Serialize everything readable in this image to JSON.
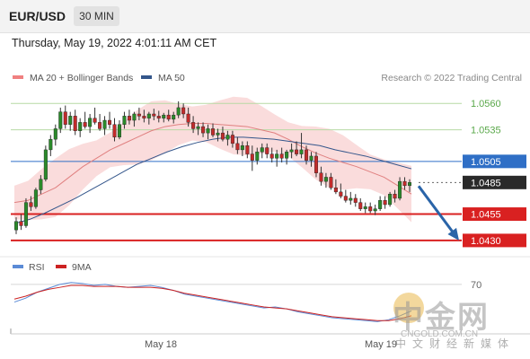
{
  "header": {
    "pair": "EUR/USD",
    "timeframe": "30 MIN"
  },
  "datetime": "Thursday, May 19, 2022 4:01:11 AM CET",
  "legend": {
    "bollinger_label": "MA 20 + Bollinger Bands",
    "ma50_label": "MA 50",
    "credit": "Research © 2022 Trading Central",
    "bollinger_color": "#f08080",
    "ma50_color": "#34568b"
  },
  "price_levels": [
    {
      "label": "1.0560",
      "value": 1.056,
      "style": "text-green",
      "line_color": "#b7d9a4"
    },
    {
      "label": "1.0535",
      "value": 1.0535,
      "style": "text-green",
      "line_color": "#b7d9a4"
    },
    {
      "label": "1.0505",
      "value": 1.0505,
      "style": "box-blue",
      "line_color": "#2f6fc6"
    },
    {
      "label": "1.0485",
      "value": 1.0485,
      "style": "box-dark",
      "line_color": "#666666"
    },
    {
      "label": "1.0455",
      "value": 1.0455,
      "style": "box-red",
      "line_color": "#d92121"
    },
    {
      "label": "1.0430",
      "value": 1.043,
      "style": "box-red",
      "line_color": "#d92121"
    }
  ],
  "rsi_legend": {
    "rsi_label": "RSI",
    "ma_label": "9MA",
    "rsi_color": "#5b8bd6",
    "ma_color": "#cc2222"
  },
  "rsi_level_label": "70",
  "x_labels": [
    "May 18",
    "May 19"
  ],
  "watermark": {
    "cn_text": "中金网",
    "url": "CNGOLD.COM.CN",
    "sub": "中文财经新媒体"
  },
  "chart_data": {
    "type": "candlestick",
    "title": "EUR/USD 30 MIN",
    "ylim": [
      1.0418,
      1.059
    ],
    "up_color": "#2a8a2a",
    "down_color": "#c22b2b",
    "candles": [
      [
        1.044,
        1.0452,
        1.0436,
        1.0448
      ],
      [
        1.0448,
        1.0455,
        1.044,
        1.0444
      ],
      [
        1.0444,
        1.047,
        1.0442,
        1.0466
      ],
      [
        1.0466,
        1.0472,
        1.0458,
        1.0462
      ],
      [
        1.0462,
        1.048,
        1.046,
        1.0478
      ],
      [
        1.0478,
        1.0492,
        1.0474,
        1.0488
      ],
      [
        1.0488,
        1.052,
        1.0486,
        1.0516
      ],
      [
        1.0516,
        1.053,
        1.051,
        1.0526
      ],
      [
        1.0526,
        1.054,
        1.052,
        1.0536
      ],
      [
        1.0536,
        1.0556,
        1.0532,
        1.0552
      ],
      [
        1.0552,
        1.0558,
        1.0536,
        1.054
      ],
      [
        1.054,
        1.0552,
        1.0534,
        1.0548
      ],
      [
        1.0548,
        1.0554,
        1.053,
        1.0534
      ],
      [
        1.0534,
        1.0546,
        1.0528,
        1.0542
      ],
      [
        1.0542,
        1.0552,
        1.0536,
        1.0538
      ],
      [
        1.0538,
        1.055,
        1.0532,
        1.0546
      ],
      [
        1.0546,
        1.0556,
        1.054,
        1.0542
      ],
      [
        1.0542,
        1.055,
        1.0534,
        1.0536
      ],
      [
        1.0536,
        1.0548,
        1.053,
        1.0544
      ],
      [
        1.0544,
        1.0552,
        1.0536,
        1.054
      ],
      [
        1.054,
        1.0546,
        1.0524,
        1.0528
      ],
      [
        1.0528,
        1.0544,
        1.0526,
        1.054
      ],
      [
        1.054,
        1.0552,
        1.0536,
        1.0548
      ],
      [
        1.0548,
        1.0554,
        1.054,
        1.0544
      ],
      [
        1.0544,
        1.0552,
        1.0538,
        1.055
      ],
      [
        1.055,
        1.0556,
        1.0544,
        1.0548
      ],
      [
        1.0548,
        1.0554,
        1.0542,
        1.0546
      ],
      [
        1.0546,
        1.0552,
        1.054,
        1.055
      ],
      [
        1.055,
        1.0555,
        1.0544,
        1.0548
      ],
      [
        1.0548,
        1.0553,
        1.0542,
        1.0546
      ],
      [
        1.0546,
        1.0551,
        1.0542,
        1.0549
      ],
      [
        1.0549,
        1.0554,
        1.0543,
        1.0545
      ],
      [
        1.0545,
        1.0552,
        1.0541,
        1.0549
      ],
      [
        1.0549,
        1.0562,
        1.0546,
        1.0556
      ],
      [
        1.0556,
        1.056,
        1.0546,
        1.055
      ],
      [
        1.055,
        1.0556,
        1.0538,
        1.0542
      ],
      [
        1.0542,
        1.0548,
        1.0532,
        1.0536
      ],
      [
        1.0536,
        1.0542,
        1.053,
        1.0538
      ],
      [
        1.0538,
        1.0542,
        1.0528,
        1.0532
      ],
      [
        1.0532,
        1.054,
        1.0526,
        1.0536
      ],
      [
        1.0536,
        1.0541,
        1.0528,
        1.053
      ],
      [
        1.053,
        1.0536,
        1.0524,
        1.0532
      ],
      [
        1.0532,
        1.0538,
        1.0524,
        1.0526
      ],
      [
        1.0526,
        1.0534,
        1.052,
        1.053
      ],
      [
        1.053,
        1.0534,
        1.0518,
        1.0522
      ],
      [
        1.0522,
        1.0528,
        1.0512,
        1.0516
      ],
      [
        1.0516,
        1.0524,
        1.051,
        1.052
      ],
      [
        1.052,
        1.0524,
        1.0508,
        1.0512
      ],
      [
        1.0512,
        1.052,
        1.0496,
        1.0506
      ],
      [
        1.0506,
        1.0518,
        1.0502,
        1.0514
      ],
      [
        1.0514,
        1.0522,
        1.0508,
        1.0518
      ],
      [
        1.0518,
        1.0522,
        1.0508,
        1.0512
      ],
      [
        1.0512,
        1.0518,
        1.0504,
        1.0508
      ],
      [
        1.0508,
        1.0516,
        1.05,
        1.0512
      ],
      [
        1.0512,
        1.0518,
        1.0504,
        1.0508
      ],
      [
        1.0508,
        1.0516,
        1.0502,
        1.0514
      ],
      [
        1.0514,
        1.0522,
        1.0508,
        1.0516
      ],
      [
        1.0516,
        1.0524,
        1.051,
        1.0512
      ],
      [
        1.0512,
        1.0532,
        1.0508,
        1.0516
      ],
      [
        1.0516,
        1.052,
        1.0502,
        1.0506
      ],
      [
        1.0506,
        1.0514,
        1.05,
        1.051
      ],
      [
        1.051,
        1.0514,
        1.049,
        1.0494
      ],
      [
        1.0494,
        1.05,
        1.0482,
        1.0486
      ],
      [
        1.0486,
        1.0494,
        1.048,
        1.049
      ],
      [
        1.049,
        1.0494,
        1.0478,
        1.048
      ],
      [
        1.048,
        1.0488,
        1.0474,
        1.0476
      ],
      [
        1.0476,
        1.0484,
        1.047,
        1.0472
      ],
      [
        1.0472,
        1.0478,
        1.0466,
        1.0468
      ],
      [
        1.0468,
        1.0476,
        1.0464,
        1.047
      ],
      [
        1.047,
        1.0474,
        1.0462,
        1.0466
      ],
      [
        1.0466,
        1.047,
        1.0458,
        1.046
      ],
      [
        1.046,
        1.0466,
        1.0456,
        1.0462
      ],
      [
        1.0462,
        1.0466,
        1.0456,
        1.0458
      ],
      [
        1.0458,
        1.0464,
        1.0454,
        1.046
      ],
      [
        1.046,
        1.0472,
        1.0458,
        1.0468
      ],
      [
        1.0468,
        1.0472,
        1.046,
        1.0464
      ],
      [
        1.0464,
        1.0476,
        1.0462,
        1.0474
      ],
      [
        1.0474,
        1.0478,
        1.0466,
        1.047
      ],
      [
        1.047,
        1.049,
        1.0468,
        1.0486
      ],
      [
        1.0486,
        1.049,
        1.0478,
        1.0482
      ],
      [
        1.0482,
        1.0488,
        1.0476,
        1.0485
      ]
    ],
    "ma20": [
      1.0466,
      1.0468,
      1.0474,
      1.048,
      1.049,
      1.05,
      1.0508,
      1.0516,
      1.0522,
      1.0528,
      1.0534,
      1.0538,
      1.054,
      1.0541,
      1.0541,
      1.054,
      1.0539,
      1.0538,
      1.0535,
      1.0532,
      1.0526,
      1.0519,
      1.0513,
      1.0508,
      1.0504,
      1.05,
      1.0495,
      1.049,
      1.0482,
      1.0474
    ],
    "ma50": [
      1.0446,
      1.045,
      1.0456,
      1.0463,
      1.047,
      1.0478,
      1.0486,
      1.0494,
      1.0502,
      1.0508,
      1.0514,
      1.0519,
      1.0523,
      1.0526,
      1.0528,
      1.0528,
      1.0527,
      1.0526,
      1.0524,
      1.0522,
      1.052,
      1.0516,
      1.0513,
      1.051,
      1.0506,
      1.0502,
      1.0498
    ],
    "forecast": {
      "from": 1.0485,
      "to": 1.043
    },
    "rsi": [
      52,
      56,
      62,
      66,
      70,
      72,
      71,
      69,
      70,
      68,
      67,
      68,
      69,
      67,
      64,
      60,
      58,
      56,
      54,
      52,
      50,
      48,
      46,
      47,
      45,
      42,
      40,
      38,
      36,
      35,
      34,
      33,
      32,
      34,
      38,
      43
    ],
    "rsi_ma": [
      55,
      58,
      62,
      65,
      67,
      69,
      69,
      68,
      68,
      68,
      67,
      67,
      67,
      66,
      64,
      61,
      59,
      57,
      55,
      53,
      51,
      49,
      47,
      46,
      45,
      43,
      41,
      39,
      37,
      36,
      35,
      34,
      33,
      33,
      35,
      38
    ]
  }
}
